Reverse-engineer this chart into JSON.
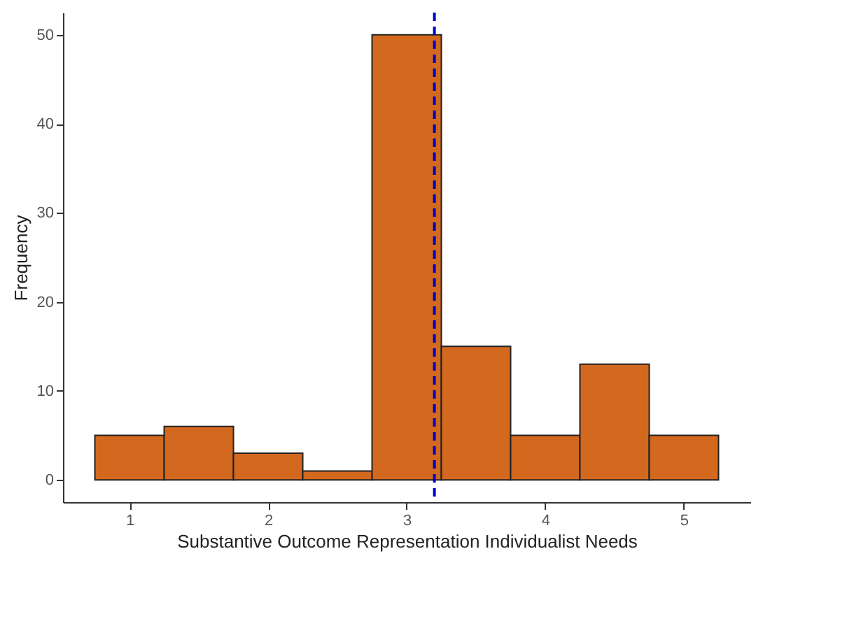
{
  "chart_data": {
    "type": "histogram",
    "xlabel": "Substantive Outcome Representation Individualist Needs",
    "ylabel": "Frequency",
    "bins": [
      0.75,
      1.25,
      1.75,
      2.25,
      2.75,
      3.25,
      3.75,
      4.25,
      4.75,
      5.25
    ],
    "values": [
      5,
      6,
      3,
      1,
      50,
      15,
      5,
      13,
      5
    ],
    "color": "#d2691e",
    "xlim": [
      0.52,
      5.48
    ],
    "xticks": [
      1,
      2,
      3,
      4,
      5
    ],
    "ylim": [
      -2.5,
      52.5
    ],
    "yticks": [
      0,
      10,
      20,
      30,
      40,
      50
    ],
    "ref_lines": [
      {
        "axis": "x",
        "value": 3.2,
        "color": "#0000cc",
        "line_style": "dashed"
      }
    ],
    "grid": false
  }
}
